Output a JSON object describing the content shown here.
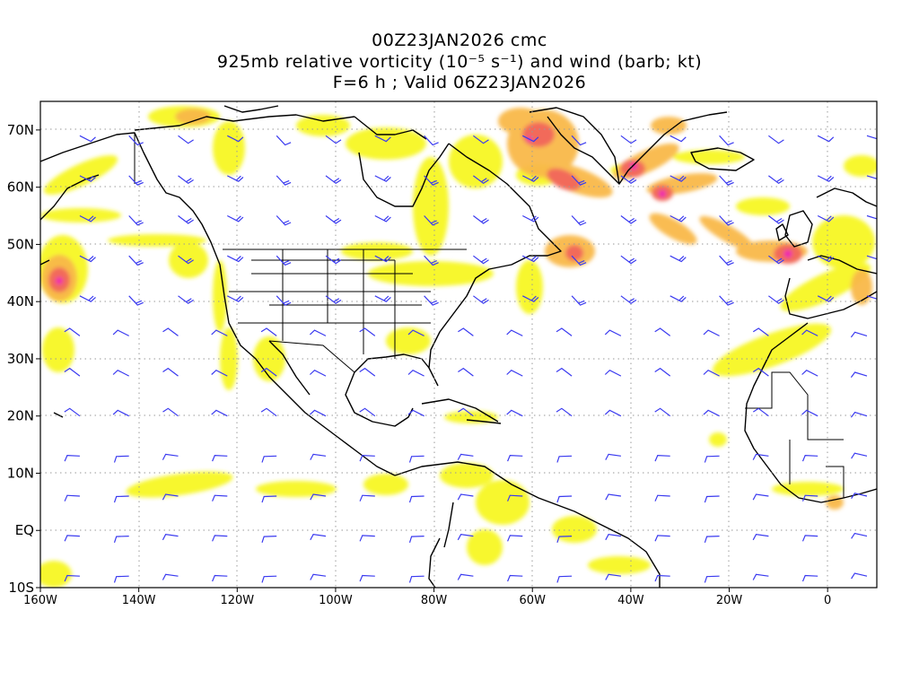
{
  "title": {
    "line1": "00Z23JAN2026 cmc",
    "line2": "925mb relative vorticity (10⁻⁵ s⁻¹) and wind (barb; kt)",
    "line3": "F=6 h ; Valid 06Z23JAN2026"
  },
  "axes": {
    "lon_range": [
      -160,
      10
    ],
    "lat_range": [
      -10,
      75
    ],
    "lat_ticks": [
      {
        "value": 70,
        "label": "70N"
      },
      {
        "value": 60,
        "label": "60N"
      },
      {
        "value": 50,
        "label": "50N"
      },
      {
        "value": 40,
        "label": "40N"
      },
      {
        "value": 30,
        "label": "30N"
      },
      {
        "value": 20,
        "label": "20N"
      },
      {
        "value": 10,
        "label": "10N"
      },
      {
        "value": 0,
        "label": "EQ"
      },
      {
        "value": -10,
        "label": "10S"
      }
    ],
    "lon_ticks": [
      {
        "value": -160,
        "label": "160W"
      },
      {
        "value": -140,
        "label": "140W"
      },
      {
        "value": -120,
        "label": "120W"
      },
      {
        "value": -100,
        "label": "100W"
      },
      {
        "value": -80,
        "label": "80W"
      },
      {
        "value": -60,
        "label": "60W"
      },
      {
        "value": -40,
        "label": "40W"
      },
      {
        "value": -20,
        "label": "20W"
      },
      {
        "value": 0,
        "label": "0"
      }
    ],
    "grid": "dotted"
  },
  "colors": {
    "vort_low": "#f7f724",
    "vort_mid": "#f9b94a",
    "vort_high": "#f26a5a",
    "vort_max": "#f01eb4",
    "coast": "#000000",
    "barb": "#3a3af0",
    "grid": "#9a9a9a"
  },
  "vorticity_maxima": [
    {
      "name": "north-pacific-low",
      "lon": -156,
      "lat": 43,
      "level": 3
    },
    {
      "name": "labrador-sea",
      "lon": -62,
      "lat": 57,
      "level": 3
    },
    {
      "name": "davis-strait",
      "lon": -67,
      "lat": 65,
      "level": 2
    },
    {
      "name": "south-greenland",
      "lon": -40,
      "lat": 64,
      "level": 3
    },
    {
      "name": "mid-atlantic-jet",
      "lon": -34,
      "lat": 59,
      "level": 3
    },
    {
      "name": "bay-of-biscay",
      "lon": -8,
      "lat": 48,
      "level": 3
    },
    {
      "name": "newfoundland",
      "lon": -53,
      "lat": 48,
      "level": 2
    }
  ]
}
